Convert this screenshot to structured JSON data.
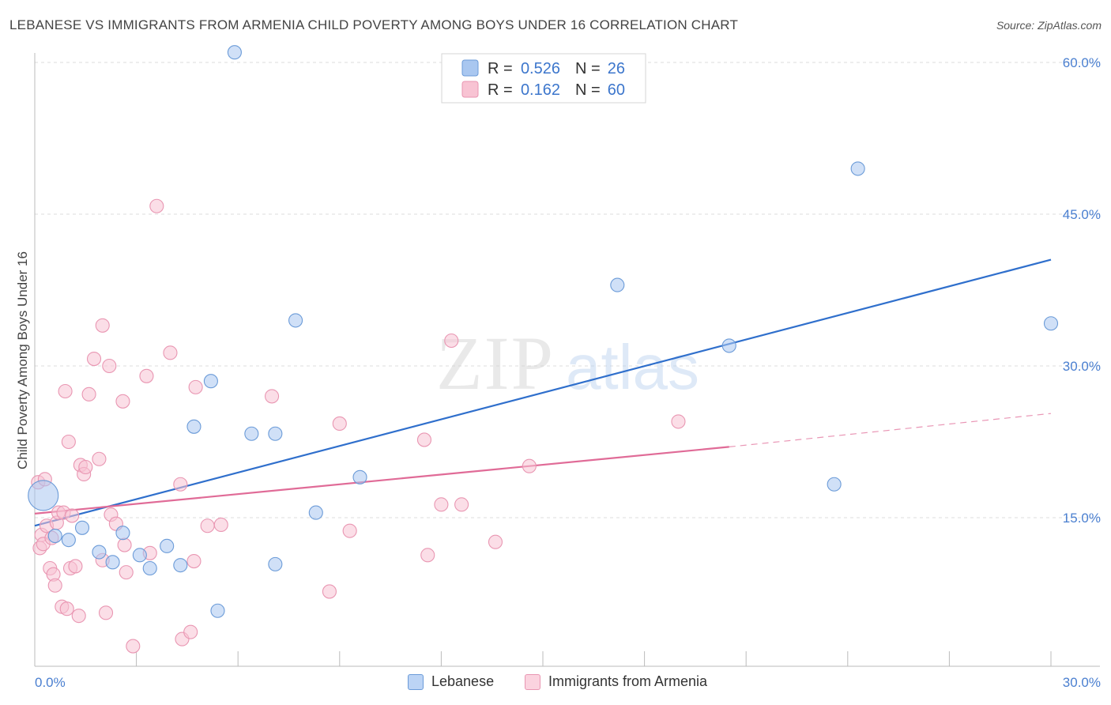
{
  "title": "LEBANESE VS IMMIGRANTS FROM ARMENIA CHILD POVERTY AMONG BOYS UNDER 16 CORRELATION CHART",
  "source": "Source: ZipAtlas.com",
  "watermark": {
    "zip": "ZIP",
    "atlas": "atlas"
  },
  "chart_data": {
    "type": "scatter",
    "title": "LEBANESE VS IMMIGRANTS FROM ARMENIA CHILD POVERTY AMONG BOYS UNDER 16 CORRELATION CHART",
    "xlabel": "",
    "ylabel": "Child Poverty Among Boys Under 16",
    "xlim": [
      0,
      30
    ],
    "ylim": [
      0,
      60
    ],
    "x_tick_labels": [
      "0.0%",
      "30.0%"
    ],
    "y_ticks": [
      {
        "value": 15,
        "label": "15.0%"
      },
      {
        "value": 30,
        "label": "30.0%"
      },
      {
        "value": 45,
        "label": "45.0%"
      },
      {
        "value": 60,
        "label": "60.0%"
      }
    ],
    "legend_stats": [
      {
        "r_label": "R =",
        "r_value": "0.526",
        "n_label": "N =",
        "n_value": "26"
      },
      {
        "r_label": "R =",
        "r_value": "0.162",
        "n_label": "N =",
        "n_value": "60"
      }
    ],
    "series": [
      {
        "name": "Lebanese",
        "color": "#a9c7f0",
        "edge": "#6b9bd8",
        "line_color": "#2f6fcc",
        "trend": {
          "x0": 0,
          "y0": 14.2,
          "x1": 30,
          "y1": 40.5,
          "dashed_to": null
        },
        "points": [
          {
            "x": 0.25,
            "y": 17.2,
            "big": true
          },
          {
            "x": 0.6,
            "y": 13.2
          },
          {
            "x": 1.0,
            "y": 12.8
          },
          {
            "x": 1.4,
            "y": 14.0
          },
          {
            "x": 1.9,
            "y": 11.6
          },
          {
            "x": 2.3,
            "y": 10.6
          },
          {
            "x": 2.6,
            "y": 13.5
          },
          {
            "x": 3.1,
            "y": 11.3
          },
          {
            "x": 3.4,
            "y": 10.0
          },
          {
            "x": 3.9,
            "y": 12.2
          },
          {
            "x": 4.3,
            "y": 10.3
          },
          {
            "x": 4.7,
            "y": 24.0
          },
          {
            "x": 5.2,
            "y": 28.5
          },
          {
            "x": 5.4,
            "y": 5.8
          },
          {
            "x": 5.9,
            "y": 61.0
          },
          {
            "x": 6.4,
            "y": 23.3
          },
          {
            "x": 7.1,
            "y": 23.3
          },
          {
            "x": 7.1,
            "y": 10.4
          },
          {
            "x": 7.7,
            "y": 34.5
          },
          {
            "x": 8.3,
            "y": 15.5
          },
          {
            "x": 9.6,
            "y": 19.0
          },
          {
            "x": 17.2,
            "y": 38.0
          },
          {
            "x": 20.5,
            "y": 32.0
          },
          {
            "x": 23.6,
            "y": 18.3
          },
          {
            "x": 24.3,
            "y": 49.5
          },
          {
            "x": 30.0,
            "y": 34.2
          }
        ]
      },
      {
        "name": "Immigrants from Armenia",
        "color": "#f8c3d3",
        "edge": "#e996b2",
        "line_color": "#e06b97",
        "trend": {
          "x0": 0,
          "y0": 15.4,
          "x1": 20.5,
          "y1": 22.0,
          "dashed_to": {
            "x": 30,
            "y": 25.3
          }
        },
        "points": [
          {
            "x": 0.1,
            "y": 18.5
          },
          {
            "x": 0.15,
            "y": 12.0
          },
          {
            "x": 0.2,
            "y": 13.3
          },
          {
            "x": 0.25,
            "y": 12.4
          },
          {
            "x": 0.3,
            "y": 18.8
          },
          {
            "x": 0.35,
            "y": 14.2
          },
          {
            "x": 0.45,
            "y": 10.0
          },
          {
            "x": 0.5,
            "y": 13.0
          },
          {
            "x": 0.55,
            "y": 9.4
          },
          {
            "x": 0.6,
            "y": 8.3
          },
          {
            "x": 0.65,
            "y": 14.5
          },
          {
            "x": 0.7,
            "y": 15.5
          },
          {
            "x": 0.8,
            "y": 6.2
          },
          {
            "x": 0.85,
            "y": 15.5
          },
          {
            "x": 0.9,
            "y": 27.5
          },
          {
            "x": 0.95,
            "y": 6.0
          },
          {
            "x": 1.0,
            "y": 22.5
          },
          {
            "x": 1.05,
            "y": 10.0
          },
          {
            "x": 1.1,
            "y": 15.2
          },
          {
            "x": 1.2,
            "y": 10.2
          },
          {
            "x": 1.3,
            "y": 5.3
          },
          {
            "x": 1.35,
            "y": 20.2
          },
          {
            "x": 1.45,
            "y": 19.3
          },
          {
            "x": 1.5,
            "y": 20.0
          },
          {
            "x": 1.6,
            "y": 27.2
          },
          {
            "x": 1.75,
            "y": 30.7
          },
          {
            "x": 1.9,
            "y": 20.8
          },
          {
            "x": 2.0,
            "y": 10.8
          },
          {
            "x": 2.0,
            "y": 34.0
          },
          {
            "x": 2.1,
            "y": 5.6
          },
          {
            "x": 2.2,
            "y": 30.0
          },
          {
            "x": 2.25,
            "y": 15.3
          },
          {
            "x": 2.4,
            "y": 14.4
          },
          {
            "x": 2.6,
            "y": 26.5
          },
          {
            "x": 2.65,
            "y": 12.3
          },
          {
            "x": 2.7,
            "y": 9.6
          },
          {
            "x": 2.9,
            "y": 2.3
          },
          {
            "x": 3.3,
            "y": 29.0
          },
          {
            "x": 3.4,
            "y": 11.5
          },
          {
            "x": 3.6,
            "y": 45.8
          },
          {
            "x": 4.0,
            "y": 31.3
          },
          {
            "x": 4.3,
            "y": 18.3
          },
          {
            "x": 4.35,
            "y": 3.0
          },
          {
            "x": 4.6,
            "y": 3.7
          },
          {
            "x": 4.7,
            "y": 10.7
          },
          {
            "x": 4.75,
            "y": 27.9
          },
          {
            "x": 5.1,
            "y": 14.2
          },
          {
            "x": 5.5,
            "y": 14.3
          },
          {
            "x": 7.0,
            "y": 27.0
          },
          {
            "x": 8.7,
            "y": 7.7
          },
          {
            "x": 9.0,
            "y": 24.3
          },
          {
            "x": 9.3,
            "y": 13.7
          },
          {
            "x": 11.5,
            "y": 22.7
          },
          {
            "x": 11.6,
            "y": 11.3
          },
          {
            "x": 12.0,
            "y": 16.3
          },
          {
            "x": 12.3,
            "y": 32.5
          },
          {
            "x": 12.6,
            "y": 16.3
          },
          {
            "x": 13.6,
            "y": 12.6
          },
          {
            "x": 14.6,
            "y": 20.1
          },
          {
            "x": 19.0,
            "y": 24.5
          }
        ]
      }
    ]
  },
  "bottom_legend": [
    "Lebanese",
    "Immigrants from Armenia"
  ]
}
